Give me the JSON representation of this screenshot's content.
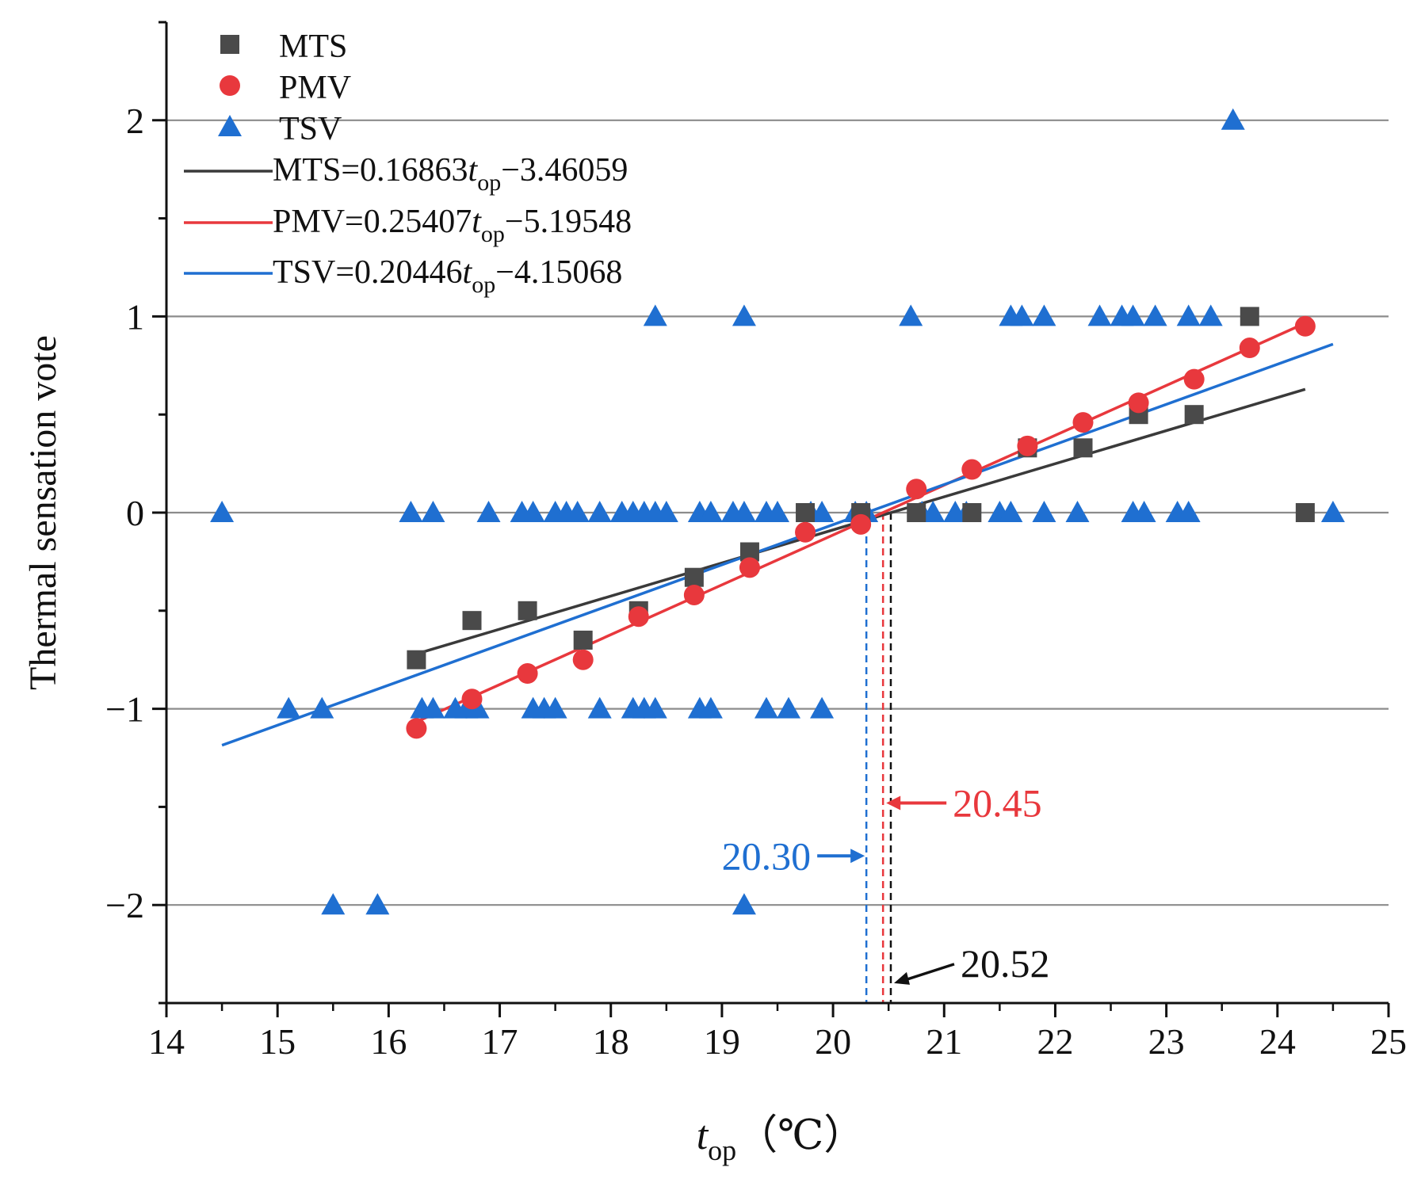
{
  "chart_data": {
    "type": "scatter",
    "xlabel": {
      "main": "t",
      "sub": "op",
      "unit": "（℃）"
    },
    "ylabel": "Thermal sensation vote",
    "xlim": [
      14,
      25
    ],
    "ylim": [
      -2.5,
      2.5
    ],
    "x_ticks": [
      "14",
      "15",
      "16",
      "17",
      "18",
      "19",
      "20",
      "21",
      "22",
      "23",
      "24",
      "25"
    ],
    "y_ticks": [
      "−2",
      "−1",
      "0",
      "1",
      "2"
    ],
    "y_tick_values": [
      -2,
      -1,
      0,
      1,
      2
    ],
    "grid": "horizontal at major ticks",
    "legend_position": "top-left",
    "series": [
      {
        "name": "MTS",
        "marker": "square",
        "color": "#4a4a4a",
        "points": [
          [
            16.25,
            -0.75
          ],
          [
            16.75,
            -0.55
          ],
          [
            17.25,
            -0.5
          ],
          [
            17.75,
            -0.65
          ],
          [
            18.25,
            -0.5
          ],
          [
            18.75,
            -0.33
          ],
          [
            19.25,
            -0.2
          ],
          [
            19.75,
            0
          ],
          [
            20.25,
            0
          ],
          [
            20.75,
            0
          ],
          [
            21.25,
            0
          ],
          [
            21.75,
            0.33
          ],
          [
            22.25,
            0.33
          ],
          [
            22.75,
            0.5
          ],
          [
            23.25,
            0.5
          ],
          [
            23.75,
            1
          ],
          [
            24.25,
            0
          ]
        ]
      },
      {
        "name": "PMV",
        "marker": "circle",
        "color": "#e8383d",
        "points": [
          [
            16.25,
            -1.1
          ],
          [
            16.75,
            -0.95
          ],
          [
            17.25,
            -0.82
          ],
          [
            17.75,
            -0.75
          ],
          [
            18.25,
            -0.53
          ],
          [
            18.75,
            -0.42
          ],
          [
            19.25,
            -0.28
          ],
          [
            19.75,
            -0.1
          ],
          [
            20.25,
            -0.06
          ],
          [
            20.75,
            0.12
          ],
          [
            21.25,
            0.22
          ],
          [
            21.75,
            0.34
          ],
          [
            22.25,
            0.46
          ],
          [
            22.75,
            0.56
          ],
          [
            23.25,
            0.68
          ],
          [
            23.75,
            0.84
          ],
          [
            24.25,
            0.95
          ]
        ]
      },
      {
        "name": "TSV",
        "marker": "triangle",
        "color": "#1f6fd1",
        "points": [
          [
            23.6,
            2
          ],
          [
            18.4,
            1
          ],
          [
            19.2,
            1
          ],
          [
            20.7,
            1
          ],
          [
            21.6,
            1
          ],
          [
            21.7,
            1
          ],
          [
            21.9,
            1
          ],
          [
            22.4,
            1
          ],
          [
            22.6,
            1
          ],
          [
            22.7,
            1
          ],
          [
            22.9,
            1
          ],
          [
            23.2,
            1
          ],
          [
            23.4,
            1
          ],
          [
            14.5,
            0
          ],
          [
            16.2,
            0
          ],
          [
            16.4,
            0
          ],
          [
            16.9,
            0
          ],
          [
            17.2,
            0
          ],
          [
            17.3,
            0
          ],
          [
            17.5,
            0
          ],
          [
            17.6,
            0
          ],
          [
            17.7,
            0
          ],
          [
            17.9,
            0
          ],
          [
            18.1,
            0
          ],
          [
            18.2,
            0
          ],
          [
            18.3,
            0
          ],
          [
            18.4,
            0
          ],
          [
            18.5,
            0
          ],
          [
            18.8,
            0
          ],
          [
            18.9,
            0
          ],
          [
            19.1,
            0
          ],
          [
            19.2,
            0
          ],
          [
            19.4,
            0
          ],
          [
            19.5,
            0
          ],
          [
            19.8,
            0
          ],
          [
            19.9,
            0
          ],
          [
            20.2,
            0
          ],
          [
            20.3,
            0
          ],
          [
            20.8,
            0
          ],
          [
            20.9,
            0
          ],
          [
            21.1,
            0
          ],
          [
            21.2,
            0
          ],
          [
            21.5,
            0
          ],
          [
            21.6,
            0
          ],
          [
            21.9,
            0
          ],
          [
            22.2,
            0
          ],
          [
            22.7,
            0
          ],
          [
            22.8,
            0
          ],
          [
            23.1,
            0
          ],
          [
            23.2,
            0
          ],
          [
            24.5,
            0
          ],
          [
            15.1,
            -1
          ],
          [
            15.4,
            -1
          ],
          [
            16.3,
            -1
          ],
          [
            16.4,
            -1
          ],
          [
            16.6,
            -1
          ],
          [
            16.7,
            -1
          ],
          [
            16.8,
            -1
          ],
          [
            17.3,
            -1
          ],
          [
            17.4,
            -1
          ],
          [
            17.5,
            -1
          ],
          [
            17.9,
            -1
          ],
          [
            18.2,
            -1
          ],
          [
            18.3,
            -1
          ],
          [
            18.4,
            -1
          ],
          [
            18.8,
            -1
          ],
          [
            18.9,
            -1
          ],
          [
            19.4,
            -1
          ],
          [
            19.6,
            -1
          ],
          [
            19.9,
            -1
          ],
          [
            15.5,
            -2
          ],
          [
            15.9,
            -2
          ],
          [
            19.2,
            -2
          ]
        ]
      }
    ],
    "fits": [
      {
        "name": "MTS",
        "color": "#3a3a3a",
        "slope": 0.16863,
        "intercept": -3.46059,
        "x_range": [
          16.25,
          24.25
        ],
        "label": {
          "lhs": "MTS=0.16863",
          "var": "t",
          "sub": "op",
          "rhs": "−3.46059"
        }
      },
      {
        "name": "PMV",
        "color": "#e8383d",
        "slope": 0.25407,
        "intercept": -5.19548,
        "x_range": [
          16.25,
          24.25
        ],
        "label": {
          "lhs": "PMV=0.25407",
          "var": "t",
          "sub": "op",
          "rhs": "−5.19548"
        }
      },
      {
        "name": "TSV",
        "color": "#1f6fd1",
        "slope": 0.20446,
        "intercept": -4.15068,
        "x_range": [
          14.5,
          24.5
        ],
        "label": {
          "lhs": "TSV=0.20446",
          "var": "t",
          "sub": "op",
          "rhs": "−4.15068"
        }
      }
    ],
    "annotations": [
      {
        "label": "20.30",
        "x": 20.3,
        "color": "#1f6fd1",
        "text_pos": "left",
        "y": -1.75
      },
      {
        "label": "20.45",
        "x": 20.45,
        "color": "#e8383d",
        "text_pos": "right",
        "y": -1.48
      },
      {
        "label": "20.52",
        "x": 20.52,
        "color": "#111111",
        "text_pos": "right",
        "y": -2.35
      }
    ]
  }
}
